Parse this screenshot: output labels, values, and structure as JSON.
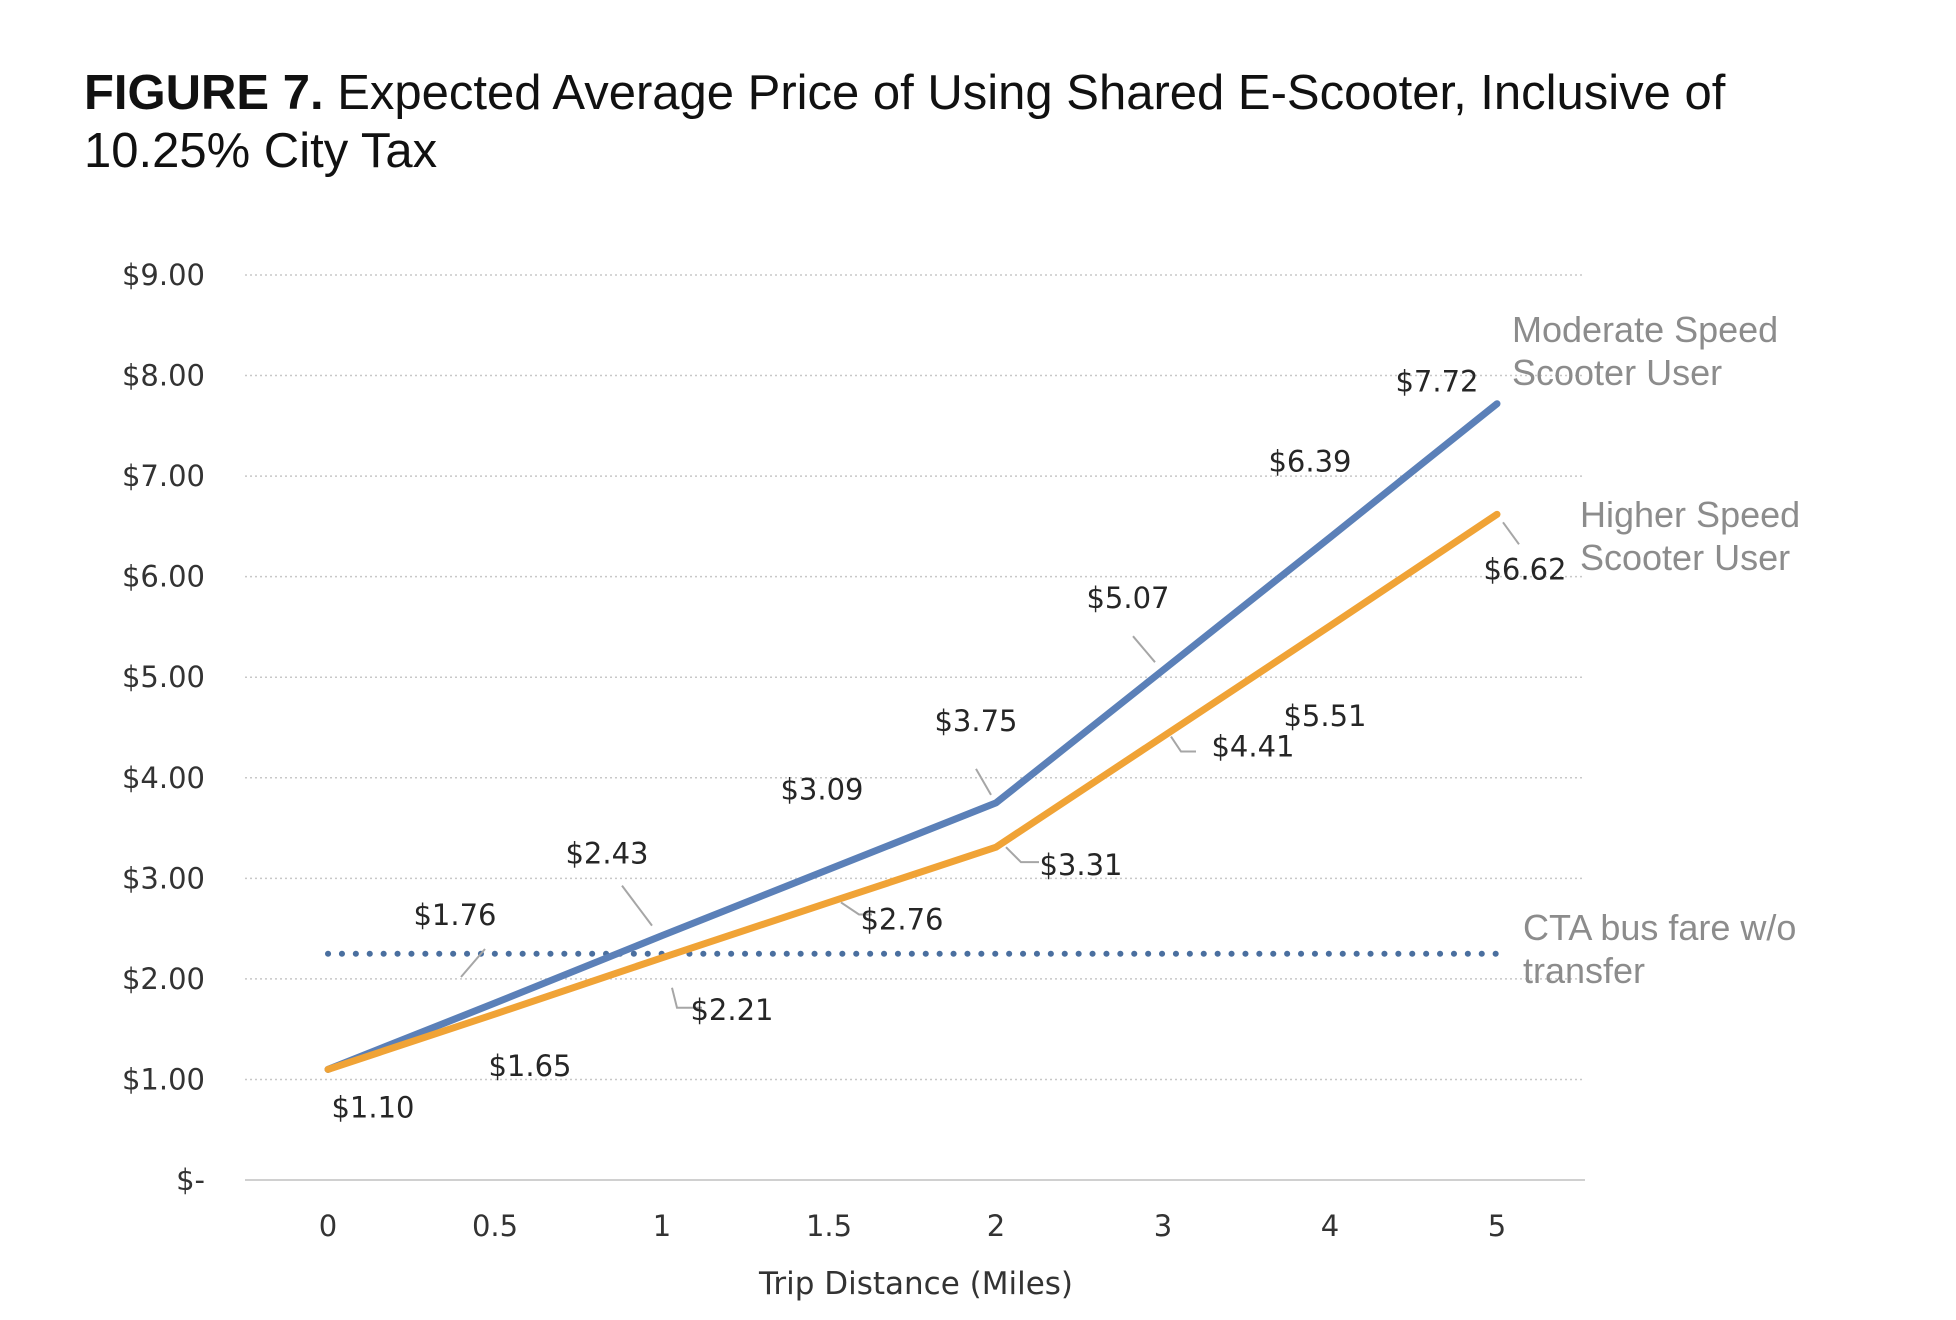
{
  "figure": {
    "label": "FIGURE 7.",
    "title": "Expected Average Price of Using Shared E-Scooter, Inclusive of 10.25% City Tax"
  },
  "chart_data": {
    "type": "line",
    "categories": [
      "0",
      "0.5",
      "1",
      "1.5",
      "2",
      "3",
      "4",
      "5"
    ],
    "xlabel": "Trip Distance (Miles)",
    "ylabel": "",
    "ylim": [
      0,
      9
    ],
    "yticks": [
      0,
      1,
      2,
      3,
      4,
      5,
      6,
      7,
      8,
      9
    ],
    "ytick_labels": [
      "$-",
      "$1.00",
      "$2.00",
      "$3.00",
      "$4.00",
      "$5.00",
      "$6.00",
      "$7.00",
      "$8.00",
      "$9.00"
    ],
    "grid": true,
    "series": [
      {
        "name": "Moderate Speed Scooter User",
        "name_lines": [
          "Moderate Speed",
          "Scooter User"
        ],
        "color": "#5b80b8",
        "style": "solid",
        "values": [
          1.1,
          1.76,
          2.43,
          3.09,
          3.75,
          5.07,
          6.39,
          7.72
        ],
        "data_labels": [
          "",
          "$1.76",
          "$2.43",
          "$3.09",
          "$3.75",
          "$5.07",
          "$6.39",
          "$7.72"
        ]
      },
      {
        "name": "Higher Speed Scooter User",
        "name_lines": [
          "Higher Speed",
          "Scooter User"
        ],
        "color": "#f0a336",
        "style": "solid",
        "values": [
          1.1,
          1.65,
          2.21,
          2.76,
          3.31,
          4.41,
          5.51,
          6.62
        ],
        "data_labels": [
          "$1.10",
          "$1.65",
          "$2.21",
          "$2.76",
          "$3.31",
          "$4.41",
          "$5.51",
          "$6.62"
        ]
      },
      {
        "name": "CTA bus fare w/o transfer",
        "name_lines": [
          "CTA bus fare w/o",
          "transfer"
        ],
        "color": "#4a6f9f",
        "style": "dotted",
        "values": [
          2.25,
          2.25,
          2.25,
          2.25,
          2.25,
          2.25,
          2.25,
          2.25
        ],
        "data_labels": []
      }
    ]
  }
}
